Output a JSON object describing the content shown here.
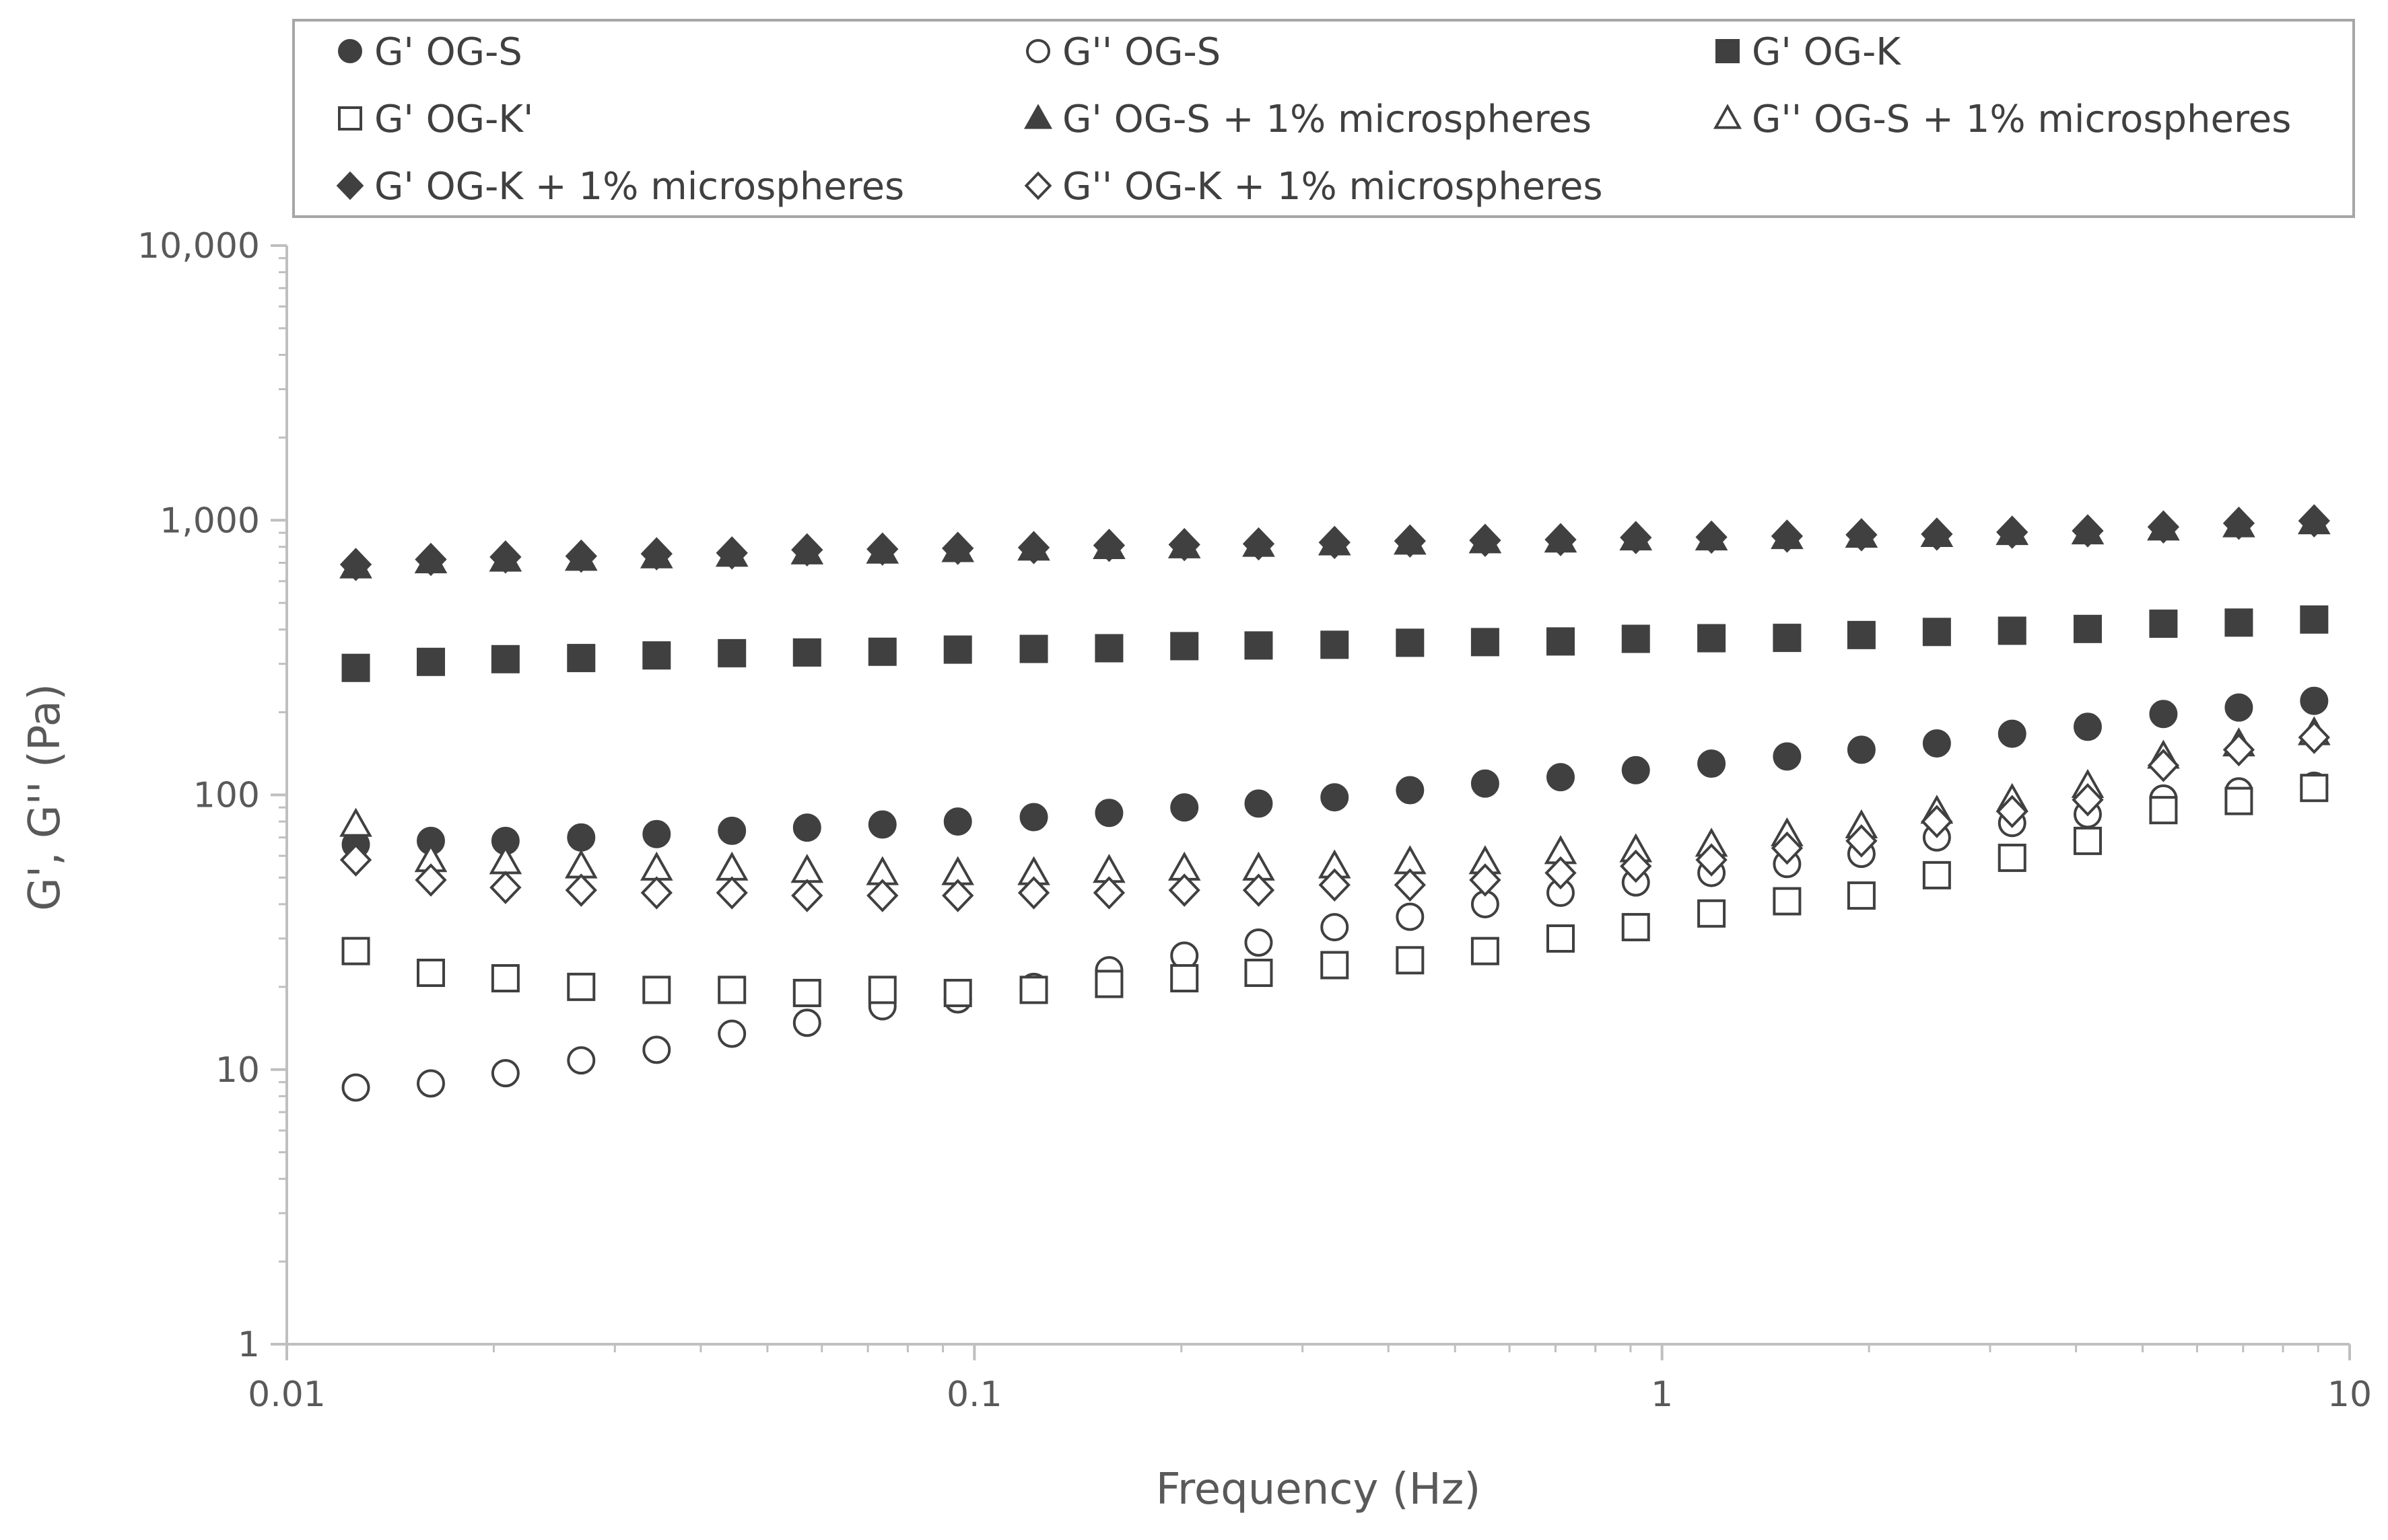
{
  "chart_data": {
    "type": "scatter",
    "xscale": "log",
    "yscale": "log",
    "xlabel": "Frequency (Hz)",
    "ylabel": "G', G'' (Pa)",
    "xlim": [
      0.01,
      10
    ],
    "ylim": [
      1,
      10000
    ],
    "xticks": [
      "0.01",
      "0.1",
      "1",
      "10"
    ],
    "yticks": [
      "1",
      "10",
      "100",
      "1,000",
      "10,000"
    ],
    "grid": false,
    "legend_position": "top",
    "x": [
      0.0126,
      0.0162,
      0.0208,
      0.0268,
      0.0345,
      0.0444,
      0.0571,
      0.0735,
      0.0946,
      0.122,
      0.157,
      0.202,
      0.259,
      0.334,
      0.43,
      0.553,
      0.712,
      0.916,
      1.18,
      1.52,
      1.95,
      2.51,
      3.23,
      4.16,
      5.36,
      6.9,
      8.88
    ],
    "series": [
      {
        "name": "G' OG-S",
        "marker": "circle-filled",
        "color": "#404040",
        "values": [
          66,
          68,
          68,
          70,
          72,
          74,
          76,
          78,
          80,
          83,
          86,
          90,
          93,
          98,
          104,
          110,
          116,
          123,
          130,
          138,
          146,
          154,
          167,
          177,
          197,
          208,
          220
        ]
      },
      {
        "name": "G'' OG-S",
        "marker": "circle-open",
        "color": "#404040",
        "values": [
          8.6,
          8.9,
          9.7,
          10.8,
          11.8,
          13.5,
          14.8,
          17,
          18,
          20,
          23,
          26,
          29,
          33,
          36,
          40,
          44,
          48,
          52,
          56,
          61,
          70,
          79,
          85,
          97,
          103,
          108
        ]
      },
      {
        "name": "G' OG-K",
        "marker": "square-filled",
        "color": "#404040",
        "values": [
          290,
          305,
          312,
          315,
          322,
          328,
          330,
          332,
          338,
          340,
          342,
          348,
          350,
          352,
          358,
          360,
          362,
          370,
          372,
          373,
          382,
          392,
          396,
          402,
          420,
          424,
          435
        ]
      },
      {
        "name": "G' OG-K'",
        "marker": "square-open",
        "color": "#404040",
        "values": [
          27,
          22.5,
          21.5,
          20,
          19.5,
          19.5,
          19,
          19.5,
          19,
          19.5,
          20.5,
          21.5,
          22.5,
          24,
          25,
          27,
          30,
          33,
          37,
          41,
          43,
          51,
          59,
          68,
          88,
          95,
          106
        ]
      },
      {
        "name": "G' OG-S + 1% microspheres",
        "marker": "triangle-filled",
        "color": "#404040",
        "values": [
          680,
          710,
          720,
          725,
          740,
          750,
          765,
          770,
          780,
          790,
          800,
          805,
          815,
          825,
          830,
          840,
          845,
          860,
          860,
          870,
          880,
          885,
          900,
          905,
          935,
          960,
          985
        ]
      },
      {
        "name": "G'' OG-S + 1% microspheres",
        "marker": "triangle-open",
        "color": "#404040",
        "values": [
          78,
          58,
          57,
          55,
          54,
          54,
          53,
          52,
          52,
          52,
          53,
          54,
          54,
          55,
          57,
          57,
          62,
          63,
          66,
          72,
          77,
          87,
          96,
          108,
          138,
          153,
          168
        ]
      },
      {
        "name": "G' OG-K + 1% microspheres",
        "marker": "diamond-filled",
        "color": "#404040",
        "values": [
          690,
          720,
          735,
          740,
          755,
          760,
          780,
          785,
          790,
          795,
          810,
          815,
          820,
          830,
          840,
          845,
          850,
          865,
          868,
          875,
          885,
          890,
          905,
          915,
          945,
          975,
          995
        ]
      },
      {
        "name": "G'' OG-K + 1% microspheres",
        "marker": "diamond-open",
        "color": "#404040",
        "values": [
          58,
          49,
          46,
          45,
          44,
          44,
          43,
          43,
          43,
          44,
          44,
          45,
          45,
          47,
          47,
          49,
          52,
          55,
          58,
          64,
          68,
          80,
          87,
          96,
          128,
          146,
          162
        ]
      }
    ]
  }
}
